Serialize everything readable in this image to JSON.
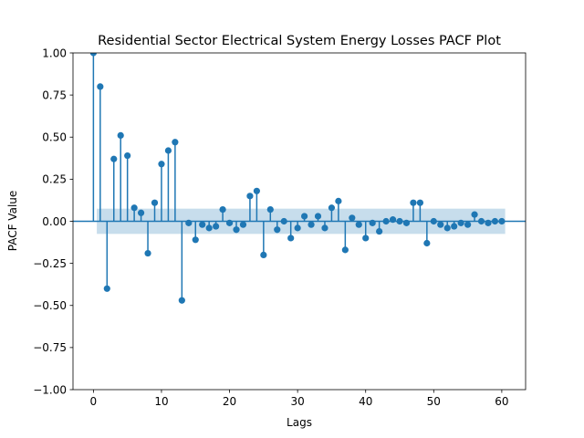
{
  "chart_data": {
    "type": "scatter",
    "title": "Residential Sector Electrical System Energy Losses PACF Plot",
    "xlabel": "Lags",
    "ylabel": "PACF Value",
    "xlim": [
      -3,
      63.5
    ],
    "ylim": [
      -1.0,
      1.0
    ],
    "xticks": [
      0,
      10,
      20,
      30,
      40,
      50,
      60
    ],
    "yticks": [
      -1.0,
      -0.75,
      -0.5,
      -0.25,
      0.0,
      0.25,
      0.5,
      0.75,
      1.0
    ],
    "ytick_labels": [
      "−1.00",
      "−0.75",
      "−0.50",
      "−0.25",
      "0.00",
      "0.25",
      "0.50",
      "0.75",
      "1.00"
    ],
    "grid": false,
    "confidence_band": {
      "lower": -0.075,
      "upper": 0.075,
      "x_start": 0.5,
      "x_end": 60.5
    },
    "colors": {
      "marker": "#1f77b4",
      "band": "#1f77b4",
      "zero_line": "#1f77b4"
    },
    "lags": [
      0,
      1,
      2,
      3,
      4,
      5,
      6,
      7,
      8,
      9,
      10,
      11,
      12,
      13,
      14,
      15,
      16,
      17,
      18,
      19,
      20,
      21,
      22,
      23,
      24,
      25,
      26,
      27,
      28,
      29,
      30,
      31,
      32,
      33,
      34,
      35,
      36,
      37,
      38,
      39,
      40,
      41,
      42,
      43,
      44,
      45,
      46,
      47,
      48,
      49,
      50,
      51,
      52,
      53,
      54,
      55,
      56,
      57,
      58,
      59,
      60
    ],
    "values": [
      1.0,
      0.8,
      -0.4,
      0.37,
      0.51,
      0.39,
      0.08,
      0.05,
      -0.19,
      0.11,
      0.34,
      0.42,
      0.47,
      -0.47,
      -0.01,
      -0.11,
      -0.02,
      -0.04,
      -0.03,
      0.07,
      -0.01,
      -0.05,
      -0.02,
      0.15,
      0.18,
      -0.2,
      0.07,
      -0.05,
      0.0,
      -0.1,
      -0.04,
      0.03,
      -0.02,
      0.03,
      -0.04,
      0.08,
      0.12,
      -0.17,
      0.02,
      -0.02,
      -0.1,
      -0.01,
      -0.06,
      0.0,
      0.01,
      0.0,
      -0.01,
      0.11,
      0.11,
      -0.13,
      0.0,
      -0.02,
      -0.04,
      -0.03,
      -0.01,
      -0.02,
      0.04,
      0.0,
      -0.01,
      0.0,
      0.0
    ]
  }
}
